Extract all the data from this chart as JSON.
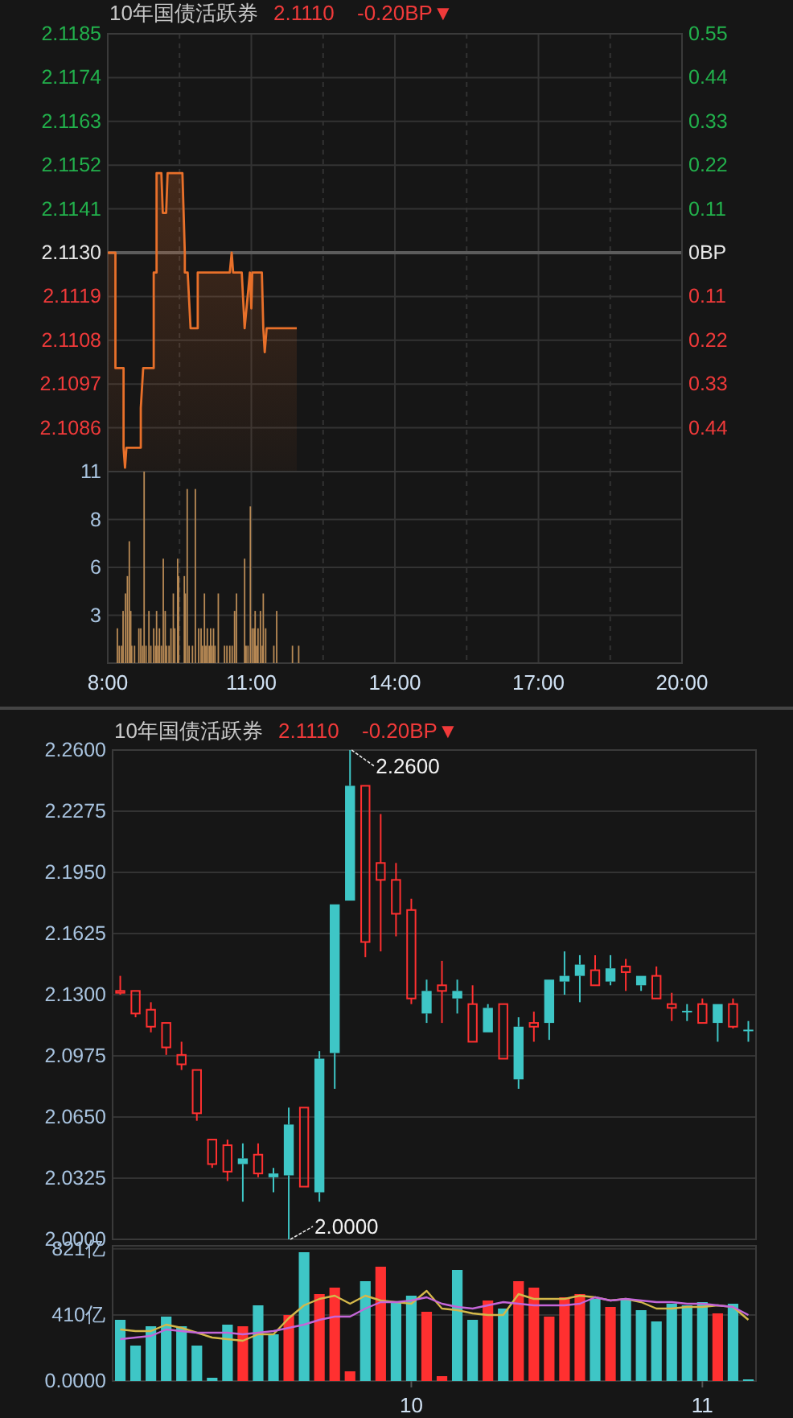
{
  "chart_data": [
    {
      "type": "area",
      "title": "10年国债活跃券",
      "subtitle": "2.1110",
      "annotations": [
        "-0.20BP▼"
      ],
      "color": "#e8702a",
      "x": [
        8.0,
        8.16,
        8.16,
        8.33,
        8.33,
        8.36,
        8.39,
        8.69,
        8.69,
        8.74,
        8.96,
        8.96,
        9.02,
        9.02,
        9.12,
        9.15,
        9.22,
        9.25,
        9.56,
        9.61,
        9.61,
        9.67,
        9.73,
        9.88,
        9.88,
        10.55,
        10.59,
        10.62,
        10.8,
        10.86,
        10.97,
        11.0,
        11.02,
        11.22,
        11.25,
        11.28,
        11.32,
        11.95
      ],
      "values": [
        2.113,
        2.113,
        2.1101,
        2.1101,
        2.1081,
        2.1076,
        2.1081,
        2.1081,
        2.1091,
        2.1101,
        2.1101,
        2.1125,
        2.1125,
        2.115,
        2.115,
        2.114,
        2.114,
        2.115,
        2.115,
        2.113,
        2.1125,
        2.1125,
        2.1111,
        2.1111,
        2.1125,
        2.1125,
        2.113,
        2.1125,
        2.1125,
        2.1111,
        2.1125,
        2.1116,
        2.1125,
        2.1125,
        2.1111,
        2.1105,
        2.1111,
        2.1111
      ],
      "xlim": [
        8,
        20
      ],
      "ylim": [
        2.1075,
        2.1185
      ],
      "y2lim": [
        -0.55,
        0.55
      ],
      "xticks": [
        8,
        9.5,
        11,
        12.5,
        14,
        15.5,
        17,
        18.5,
        20
      ],
      "yticks": [
        {
          "value": 2.1185,
          "label": "2.1185"
        },
        {
          "value": 2.1174,
          "label": "2.1174"
        },
        {
          "value": 2.1163,
          "label": "2.1163"
        },
        {
          "value": 2.1152,
          "label": "2.1152"
        },
        {
          "value": 2.1141,
          "label": "2.1141"
        },
        {
          "value": 2.113,
          "label": "2.1130"
        },
        {
          "value": 2.1119,
          "label": "2.1119"
        },
        {
          "value": 2.1108,
          "label": "2.1108"
        },
        {
          "value": 2.1097,
          "label": "2.1097"
        },
        {
          "value": 2.1086,
          "label": "2.1086"
        }
      ],
      "y2ticks": [
        0.55,
        0.44,
        0.33,
        0.22,
        0.11,
        {
          "value": 0,
          "label": "0BP"
        },
        {
          "value": -0.11,
          "label": "0.11"
        },
        {
          "value": -0.22,
          "label": "0.22"
        },
        {
          "value": -0.33,
          "label": "0.33"
        },
        {
          "value": -0.44,
          "label": "0.44"
        }
      ],
      "ref_lines": [
        {
          "axis": "y",
          "value": 2.113,
          "color": "#5c5c5c"
        }
      ],
      "grid": true,
      "tick_labels": "y"
    },
    {
      "type": "bar",
      "color": "#b88a55",
      "x": [
        8.2,
        8.24,
        8.29,
        8.32,
        8.37,
        8.41,
        8.45,
        8.48,
        8.5,
        8.56,
        8.65,
        8.69,
        8.73,
        8.76,
        8.8,
        8.86,
        8.9,
        8.96,
        9.0,
        9.02,
        9.05,
        9.08,
        9.12,
        9.16,
        9.2,
        9.23,
        9.28,
        9.32,
        9.37,
        9.4,
        9.46,
        9.48,
        9.6,
        9.62,
        9.66,
        9.7,
        9.77,
        9.83,
        9.9,
        9.95,
        9.98,
        10.02,
        10.05,
        10.08,
        10.12,
        10.15,
        10.18,
        10.21,
        10.24,
        10.31,
        10.44,
        10.49,
        10.55,
        10.6,
        10.65,
        10.69,
        10.86,
        10.89,
        10.93,
        10.98,
        11.02,
        11.06,
        11.08,
        11.11,
        11.14,
        11.19,
        11.23,
        11.25,
        11.3,
        11.47,
        11.53,
        11.86,
        11.99
      ],
      "values": [
        2,
        1,
        1,
        3,
        4,
        5,
        7,
        3,
        1,
        1,
        2,
        2,
        1,
        11,
        1,
        3,
        1,
        2,
        1,
        3,
        1,
        2,
        1,
        6,
        3,
        1,
        1,
        2,
        4,
        2,
        6,
        5,
        5,
        4,
        10,
        1,
        1,
        10,
        2,
        2,
        1,
        4,
        1,
        2,
        1,
        2,
        1,
        2,
        1,
        4,
        1,
        1,
        1,
        1,
        3,
        4,
        6,
        1,
        1,
        9,
        2,
        2,
        3,
        1,
        2,
        3,
        1,
        4,
        2,
        1,
        3,
        1,
        1
      ],
      "xlim": [
        8,
        20
      ],
      "ylim": [
        0,
        11
      ],
      "xticks": [
        {
          "value": 8,
          "label": "8:00"
        },
        {
          "value": 9.5,
          "label": null
        },
        {
          "value": 11,
          "label": "11:00"
        },
        {
          "value": 12.5,
          "label": null
        },
        {
          "value": 14,
          "label": "14:00"
        },
        {
          "value": 15.5,
          "label": null
        },
        {
          "value": 17,
          "label": "17:00"
        },
        {
          "value": 18.5,
          "label": null
        },
        {
          "value": 20,
          "label": "20:00"
        }
      ],
      "yticks": [
        {
          "value": 2.75,
          "label": "3"
        },
        {
          "value": 5.5,
          "label": "6"
        },
        {
          "value": 8.25,
          "label": "8"
        },
        {
          "value": 11,
          "label": "11"
        }
      ],
      "grid": true
    },
    {
      "type": "candlestick",
      "title": "10年国债活跃券",
      "subtitle": "2.1110",
      "annotations": [
        "-0.20BP▼",
        "2.2600",
        "2.0000"
      ],
      "categories": [
        null,
        null,
        null,
        null,
        null,
        null,
        null,
        null,
        null,
        null,
        null,
        null,
        null,
        null,
        null,
        null,
        null,
        null,
        null,
        null,
        null,
        null,
        null,
        null,
        null,
        null,
        null,
        null,
        null,
        null,
        null,
        null,
        null,
        null,
        null,
        null,
        null,
        null,
        null,
        null,
        null,
        null
      ],
      "ohlc": [
        [
          2.131,
          2.14,
          2.13,
          2.132
        ],
        [
          2.12,
          2.132,
          2.118,
          2.132
        ],
        [
          2.113,
          2.126,
          2.11,
          2.122
        ],
        [
          2.102,
          2.115,
          2.098,
          2.115
        ],
        [
          2.093,
          2.105,
          2.09,
          2.098
        ],
        [
          2.067,
          2.09,
          2.063,
          2.09
        ],
        [
          2.04,
          2.053,
          2.038,
          2.053
        ],
        [
          2.036,
          2.053,
          2.031,
          2.05
        ],
        [
          2.043,
          2.051,
          2.02,
          2.04
        ],
        [
          2.035,
          2.051,
          2.033,
          2.045
        ],
        [
          2.035,
          2.038,
          2.025,
          2.033
        ],
        [
          2.061,
          2.07,
          2.0,
          2.034
        ],
        [
          2.028,
          2.07,
          2.028,
          2.07
        ],
        [
          2.096,
          2.1,
          2.02,
          2.025
        ],
        [
          2.178,
          2.178,
          2.08,
          2.099
        ],
        [
          2.241,
          2.26,
          2.18,
          2.18
        ],
        [
          2.158,
          2.241,
          2.15,
          2.241
        ],
        [
          2.191,
          2.226,
          2.153,
          2.2
        ],
        [
          2.173,
          2.2,
          2.161,
          2.191
        ],
        [
          2.128,
          2.181,
          2.125,
          2.175
        ],
        [
          2.132,
          2.138,
          2.115,
          2.12
        ],
        [
          2.132,
          2.148,
          2.115,
          2.135
        ],
        [
          2.132,
          2.138,
          2.12,
          2.128
        ],
        [
          2.105,
          2.135,
          2.105,
          2.125
        ],
        [
          2.123,
          2.125,
          2.11,
          2.11
        ],
        [
          2.096,
          2.125,
          2.096,
          2.125
        ],
        [
          2.113,
          2.118,
          2.08,
          2.085
        ],
        [
          2.113,
          2.121,
          2.105,
          2.115
        ],
        [
          2.138,
          2.138,
          2.106,
          2.115
        ],
        [
          2.14,
          2.153,
          2.13,
          2.137
        ],
        [
          2.146,
          2.151,
          2.126,
          2.14
        ],
        [
          2.135,
          2.151,
          2.135,
          2.143
        ],
        [
          2.144,
          2.151,
          2.135,
          2.137
        ],
        [
          2.142,
          2.149,
          2.132,
          2.145
        ],
        [
          2.14,
          2.14,
          2.132,
          2.135
        ],
        [
          2.128,
          2.145,
          2.128,
          2.14
        ],
        [
          2.123,
          2.131,
          2.116,
          2.125
        ],
        [
          2.121,
          2.125,
          2.116,
          2.121
        ],
        [
          2.115,
          2.128,
          2.115,
          2.125
        ],
        [
          2.125,
          2.125,
          2.105,
          2.115
        ],
        [
          2.113,
          2.128,
          2.112,
          2.125
        ],
        [
          2.111,
          2.116,
          2.105,
          2.111
        ]
      ],
      "colors": [
        "#ff3030",
        "#ff3030",
        "#ff3030",
        "#ff3030",
        "#ff3030",
        "#ff3030",
        "#ff3030",
        "#ff3030",
        "#3ec6c6",
        "#ff3030",
        "#3ec6c6",
        "#3ec6c6",
        "#ff3030",
        "#3ec6c6",
        "#3ec6c6",
        "#3ec6c6",
        "#ff3030",
        "#ff3030",
        "#ff3030",
        "#ff3030",
        "#3ec6c6",
        "#ff3030",
        "#3ec6c6",
        "#ff3030",
        "#3ec6c6",
        "#ff3030",
        "#3ec6c6",
        "#ff3030",
        "#3ec6c6",
        "#3ec6c6",
        "#3ec6c6",
        "#ff3030",
        "#3ec6c6",
        "#ff3030",
        "#3ec6c6",
        "#ff3030",
        "#ff3030",
        "#3ec6c6",
        "#ff3030",
        "#3ec6c6",
        "#ff3030",
        "#3ec6c6"
      ],
      "ylim": [
        2.0,
        2.26
      ],
      "yticks": [
        {
          "value": 2.0,
          "label": "2.0000"
        },
        {
          "value": 2.0325,
          "label": "2.0325"
        },
        {
          "value": 2.065,
          "label": "2.0650"
        },
        {
          "value": 2.0975,
          "label": "2.0975"
        },
        {
          "value": 2.13,
          "label": "2.1300"
        },
        {
          "value": 2.1625,
          "label": "2.1625"
        },
        {
          "value": 2.195,
          "label": "2.1950"
        },
        {
          "value": 2.2275,
          "label": "2.2275"
        },
        {
          "value": 2.26,
          "label": "2.2600"
        }
      ],
      "grid": "y",
      "tick_labels": "y"
    },
    {
      "type": "bar",
      "categories": [
        null,
        null,
        null,
        null,
        null,
        null,
        null,
        null,
        null,
        null,
        null,
        null,
        null,
        null,
        null,
        null,
        null,
        null,
        null,
        "10",
        null,
        null,
        null,
        null,
        null,
        null,
        null,
        null,
        null,
        null,
        null,
        null,
        null,
        null,
        null,
        null,
        null,
        null,
        "11",
        null,
        null,
        null
      ],
      "series": [
        {
          "type": "bar",
          "values": [
            380,
            220,
            340,
            400,
            340,
            220,
            20,
            350,
            340,
            470,
            290,
            410,
            800,
            540,
            580,
            60,
            620,
            710,
            490,
            530,
            430,
            30,
            690,
            380,
            500,
            450,
            620,
            580,
            400,
            520,
            540,
            510,
            460,
            510,
            440,
            370,
            480,
            470,
            490,
            420,
            480,
            10
          ],
          "colors": [
            "#3ec6c6",
            "#3ec6c6",
            "#3ec6c6",
            "#3ec6c6",
            "#3ec6c6",
            "#3ec6c6",
            "#3ec6c6",
            "#3ec6c6",
            "#ff3030",
            "#3ec6c6",
            "#3ec6c6",
            "#ff3030",
            "#3ec6c6",
            "#ff3030",
            "#ff3030",
            "#ff3030",
            "#3ec6c6",
            "#ff3030",
            "#3ec6c6",
            "#3ec6c6",
            "#ff3030",
            "#ff3030",
            "#3ec6c6",
            "#3ec6c6",
            "#ff3030",
            "#3ec6c6",
            "#ff3030",
            "#ff3030",
            "#ff3030",
            "#ff3030",
            "#ff3030",
            "#3ec6c6",
            "#ff3030",
            "#3ec6c6",
            "#3ec6c6",
            "#3ec6c6",
            "#3ec6c6",
            "#3ec6c6",
            "#3ec6c6",
            "#ff3030",
            "#3ec6c6",
            "#3ec6c6"
          ]
        },
        {
          "type": "line",
          "color": "#d4b84a",
          "values": [
            320,
            310,
            310,
            350,
            330,
            300,
            270,
            260,
            250,
            290,
            290,
            390,
            470,
            510,
            530,
            480,
            530,
            500,
            490,
            480,
            560,
            450,
            440,
            420,
            410,
            410,
            540,
            510,
            510,
            510,
            530,
            520,
            500,
            510,
            490,
            450,
            450,
            460,
            460,
            470,
            460,
            380
          ]
        },
        {
          "type": "line",
          "color": "#c466d8",
          "values": [
            260,
            270,
            280,
            320,
            310,
            300,
            300,
            300,
            290,
            300,
            310,
            330,
            350,
            380,
            400,
            400,
            450,
            490,
            490,
            500,
            520,
            480,
            460,
            450,
            470,
            490,
            480,
            470,
            470,
            470,
            480,
            520,
            500,
            510,
            500,
            490,
            490,
            480,
            480,
            470,
            460,
            410
          ]
        }
      ],
      "ylim": [
        0,
        840
      ],
      "yticks": [
        {
          "value": 0,
          "label": "0.0000"
        },
        {
          "value": 410,
          "label": "410亿"
        },
        {
          "value": 821,
          "label": "821亿"
        }
      ],
      "grid": "y"
    }
  ]
}
